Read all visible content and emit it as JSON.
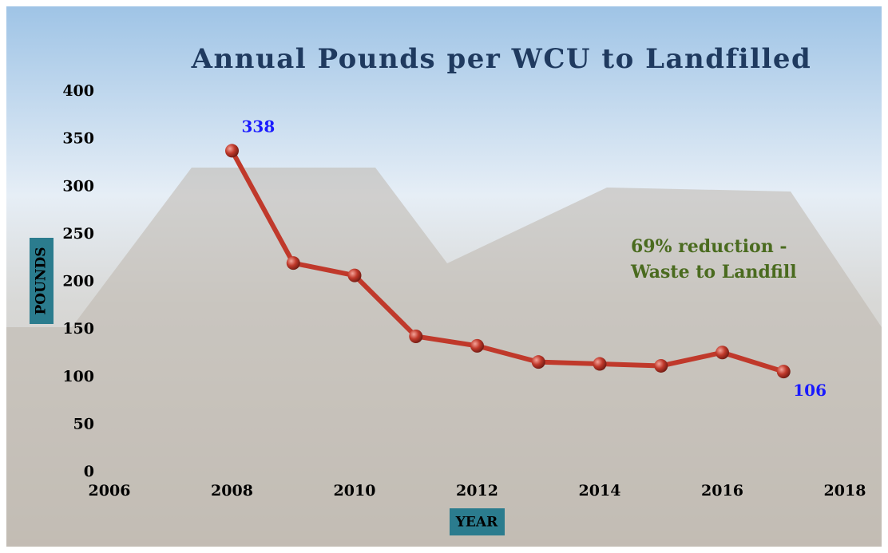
{
  "chart_data": {
    "type": "line",
    "title": "Annual Pounds per WCU to Landfilled",
    "x_label": "YEAR",
    "y_label": "POUNDS",
    "x": [
      2008,
      2009,
      2010,
      2011,
      2012,
      2013,
      2014,
      2015,
      2016,
      2017
    ],
    "values": [
      338,
      220,
      207,
      143,
      133,
      116,
      114,
      112,
      126,
      106
    ],
    "color": "#c0392b",
    "labeled_points": [
      0,
      9
    ],
    "annotation": [
      "69% reduction -",
      "Waste to Landfill"
    ],
    "xlim": [
      2006,
      2018
    ],
    "xticks": [
      2006,
      2008,
      2010,
      2012,
      2014,
      2016,
      2018
    ],
    "ylim": [
      0,
      400
    ],
    "yticks": [
      0,
      50,
      100,
      150,
      200,
      250,
      300,
      350,
      400
    ],
    "grid": false
  }
}
